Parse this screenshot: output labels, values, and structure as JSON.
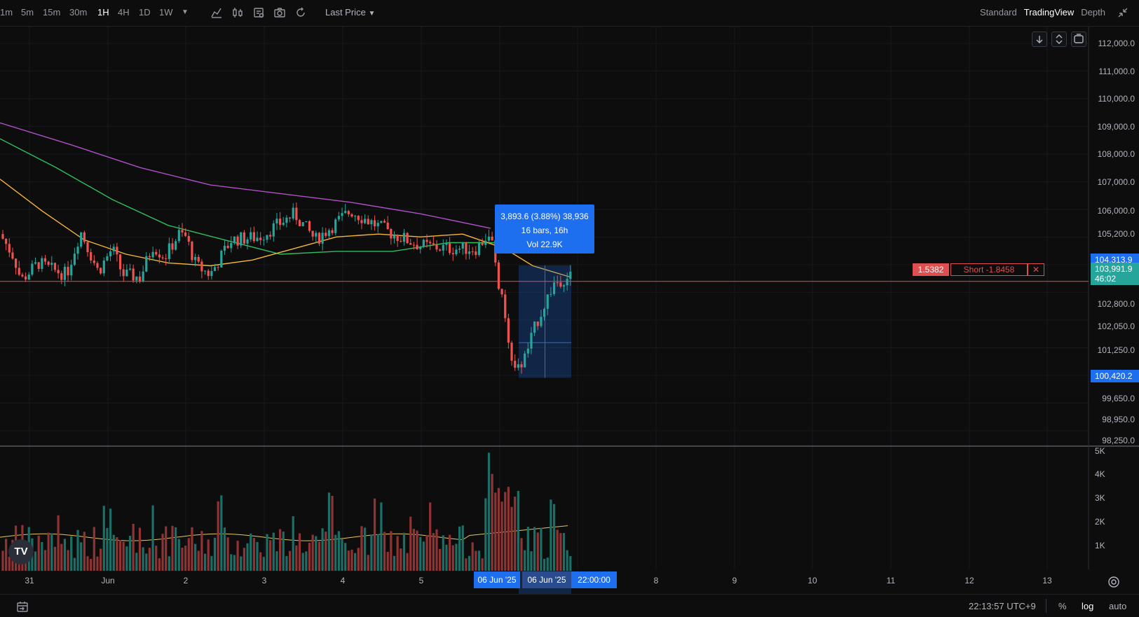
{
  "toolbar": {
    "timeframes": [
      "1m",
      "5m",
      "15m",
      "30m",
      "1H",
      "4H",
      "1D",
      "1W"
    ],
    "active_timeframe": "1H",
    "price_source": "Last Price",
    "view_modes": [
      "Standard",
      "TradingView",
      "Depth"
    ],
    "active_view": "TradingView",
    "icons": [
      "indicators-icon",
      "chart-type-icon",
      "template-icon",
      "camera-icon",
      "refresh-icon"
    ]
  },
  "price_axis": {
    "labels": [
      "112,000.0",
      "111,000.0",
      "110,000.0",
      "109,000.0",
      "108,000.0",
      "107,000.0",
      "106,000.0",
      "105,200.0",
      "102,800.0",
      "102,050.0",
      "101,250.0",
      "99,650.0",
      "98,950.0",
      "98,250.0"
    ],
    "tags": {
      "high": "104,313.9",
      "last": "103,991.9",
      "countdown": "46:02",
      "low": "100,420.2"
    },
    "volume_labels": [
      "5K",
      "4K",
      "3K",
      "2K",
      "1K"
    ]
  },
  "measure": {
    "line1": "3,893.6 (3.88%) 38,936",
    "line2": "16 bars, 16h",
    "line3": "Vol 22.9K"
  },
  "order": {
    "qty": "1.5382",
    "label": "Short -1.8458",
    "close": "✕"
  },
  "date_axis": {
    "labels": [
      "31",
      "Jun",
      "2",
      "3",
      "4",
      "5",
      "8",
      "9",
      "10",
      "11",
      "12",
      "13"
    ],
    "tag_start": "06 Jun '25",
    "tag_end": "06 Jun '25",
    "tag_time": "22:00:00"
  },
  "bottom_bar": {
    "clock": "22:13:57 UTC+9",
    "percent": "%",
    "log": "log",
    "auto": "auto"
  },
  "logo_text": "TV",
  "colors": {
    "up": "#26a69a",
    "down": "#ef5350",
    "ma_fast": "#f7b733",
    "ma_mid": "#2ebd5f",
    "ma_slow": "#b04fc7",
    "accent": "#1e6ff0",
    "order_line": "#e04f4f"
  },
  "chart_data": {
    "type": "candlestick",
    "symbol_interval": "1H",
    "price_range": [
      98250,
      112000
    ],
    "volume_range": [
      0,
      5000
    ],
    "measured_move": {
      "from": 100420.2,
      "to": 104313.9,
      "change": 3893.6,
      "percent": 3.88,
      "bars": 16,
      "duration": "16h",
      "volume": "22.9K"
    },
    "last_price": 103991.9
  }
}
